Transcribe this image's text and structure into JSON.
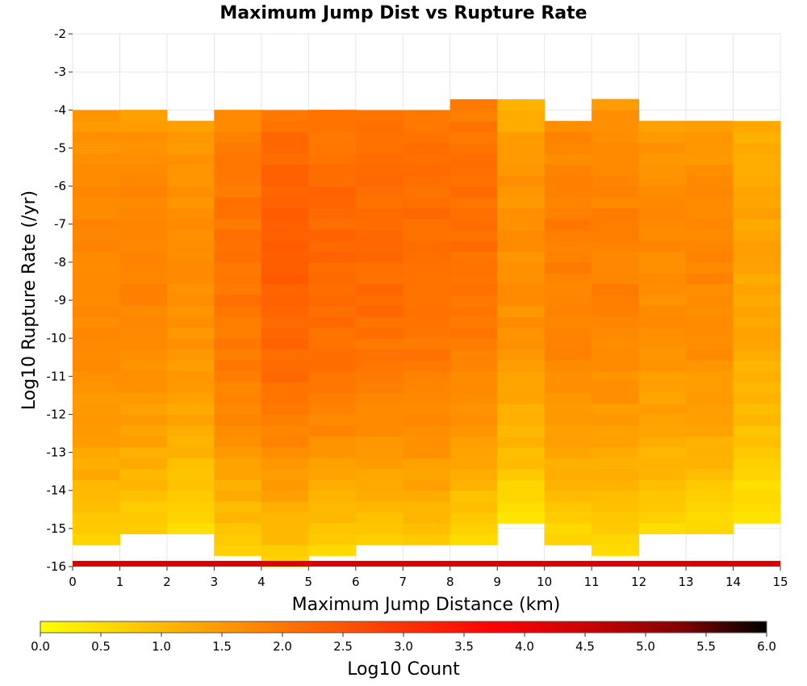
{
  "chart_data": {
    "type": "heatmap",
    "title": "Maximum Jump Dist vs Rupture Rate",
    "xlabel": "Maximum Jump Distance (km)",
    "ylabel": "Log10 Rupture Rate (/yr)",
    "xlim": [
      0,
      15
    ],
    "ylim": [
      -16,
      -2
    ],
    "x_ticks": [
      "0",
      "1",
      "2",
      "3",
      "4",
      "5",
      "6",
      "7",
      "8",
      "9",
      "10",
      "11",
      "12",
      "13",
      "14",
      "15"
    ],
    "y_ticks": [
      "-2",
      "-3",
      "-4",
      "-5",
      "-6",
      "-7",
      "-8",
      "-9",
      "-10",
      "-11",
      "-12",
      "-13",
      "-14",
      "-15",
      "-16"
    ],
    "grid": true,
    "colorbar": {
      "label": "Log10 Count",
      "range": [
        0,
        6
      ],
      "ticks": [
        "0.0",
        "0.5",
        "1.0",
        "1.5",
        "2.0",
        "2.5",
        "3.0",
        "3.5",
        "4.0",
        "4.5",
        "5.0",
        "5.5",
        "6.0"
      ],
      "colors": [
        "#ffff00",
        "#ffcc00",
        "#ff9900",
        "#ff6600",
        "#ff3300",
        "#ff0000",
        "#cc0000",
        "#880000",
        "#000000"
      ]
    },
    "x_bin_width": 1,
    "y_bin_height": 0.2857,
    "bottom_row": {
      "y": -16,
      "log10_count": 4.3
    },
    "columns": [
      {
        "x": 0,
        "y_top": -4.0,
        "y_bottom": -15.43,
        "peak": -8.0,
        "max": 1.75,
        "edge": 0.7
      },
      {
        "x": 1,
        "y_top": -4.0,
        "y_bottom": -15.14,
        "peak": -8.0,
        "max": 1.8,
        "edge": 0.6
      },
      {
        "x": 2,
        "y_top": -4.29,
        "y_bottom": -15.14,
        "peak": -7.5,
        "max": 1.65,
        "edge": 0.5
      },
      {
        "x": 3,
        "y_top": -4.0,
        "y_bottom": -15.71,
        "peak": -8.0,
        "max": 2.05,
        "edge": 0.6
      },
      {
        "x": 4,
        "y_top": -4.0,
        "y_bottom": -16.0,
        "peak": -7.7,
        "max": 2.35,
        "edge": 0.6
      },
      {
        "x": 5,
        "y_top": -4.0,
        "y_bottom": -15.71,
        "peak": -7.8,
        "max": 2.25,
        "edge": 0.5
      },
      {
        "x": 6,
        "y_top": -4.0,
        "y_bottom": -15.43,
        "peak": -7.5,
        "max": 2.2,
        "edge": 0.6
      },
      {
        "x": 7,
        "y_top": -4.0,
        "y_bottom": -15.43,
        "peak": -7.5,
        "max": 2.15,
        "edge": 0.8
      },
      {
        "x": 8,
        "y_top": -3.71,
        "y_bottom": -15.43,
        "peak": -7.0,
        "max": 2.1,
        "edge": 0.5
      },
      {
        "x": 9,
        "y_top": -3.71,
        "y_bottom": -14.86,
        "peak": -8.0,
        "max": 1.65,
        "edge": 0.3
      },
      {
        "x": 10,
        "y_top": -4.29,
        "y_bottom": -15.43,
        "peak": -7.8,
        "max": 1.9,
        "edge": 0.5
      },
      {
        "x": 11,
        "y_top": -3.71,
        "y_bottom": -15.71,
        "peak": -7.8,
        "max": 1.85,
        "edge": 0.4
      },
      {
        "x": 12,
        "y_top": -4.29,
        "y_bottom": -15.14,
        "peak": -7.8,
        "max": 1.7,
        "edge": 0.5
      },
      {
        "x": 13,
        "y_top": -4.29,
        "y_bottom": -15.14,
        "peak": -8.0,
        "max": 1.75,
        "edge": 0.4
      },
      {
        "x": 14,
        "y_top": -4.29,
        "y_bottom": -14.86,
        "peak": -7.5,
        "max": 1.35,
        "edge": 0.3
      }
    ]
  }
}
